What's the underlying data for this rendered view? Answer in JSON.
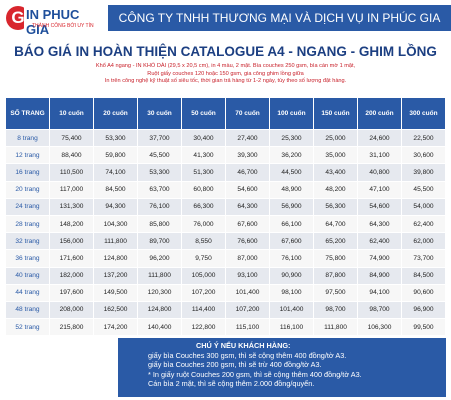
{
  "header": {
    "logo": "IN PHUC GIA",
    "slogan": "THÀNH CÔNG BỞI UY TÍN",
    "company": "CÔNG TY TNHH THƯƠNG MẠI VÀ DỊCH VỤ IN PHÚC GIA"
  },
  "title": "BÁO GIÁ IN HOÀN THIỆN CATALOGUE A4 - NGANG - GHIM LỒNG",
  "description": [
    "Khổ A4 ngang - IN KHỔ DÀI (29,5 x 20,5 cm), in 4 màu, 2 mặt. Bìa couches 250 gsm, bìa cán mờ 1 mặt,",
    "Ruột giấy couches 120 hoặc 150 gsm, gia công ghim lồng giữa",
    "In trên công nghệ kỹ thuật số siêu tốc, thời gian trả hàng từ 1-2 ngày, tùy theo số lượng đặt hàng."
  ],
  "table": {
    "columns": [
      "SỐ TRANG",
      "10 cuốn",
      "20 cuốn",
      "30 cuốn",
      "50 cuốn",
      "70 cuốn",
      "100 cuốn",
      "150 cuốn",
      "200 cuốn",
      "300 cuốn"
    ],
    "rows": [
      [
        "8 trang",
        "75,400",
        "53,300",
        "37,700",
        "30,400",
        "27,400",
        "25,300",
        "25,000",
        "24,600",
        "22,500"
      ],
      [
        "12 trang",
        "88,400",
        "59,800",
        "45,500",
        "41,300",
        "39,300",
        "36,200",
        "35,000",
        "31,100",
        "30,600"
      ],
      [
        "16 trang",
        "110,500",
        "74,100",
        "53,300",
        "51,300",
        "46,700",
        "44,500",
        "43,400",
        "40,800",
        "39,800"
      ],
      [
        "20 trang",
        "117,000",
        "84,500",
        "63,700",
        "60,800",
        "54,600",
        "48,900",
        "48,200",
        "47,100",
        "45,500"
      ],
      [
        "24 trang",
        "131,300",
        "94,300",
        "76,100",
        "66,300",
        "64,300",
        "56,900",
        "56,300",
        "54,600",
        "54,000"
      ],
      [
        "28 trang",
        "148,200",
        "104,300",
        "85,800",
        "76,000",
        "67,600",
        "66,100",
        "64,700",
        "64,300",
        "62,400"
      ],
      [
        "32 trang",
        "156,000",
        "111,800",
        "89,700",
        "8,550",
        "76,600",
        "67,600",
        "65,200",
        "62,400",
        "62,000"
      ],
      [
        "36 trang",
        "171,600",
        "124,800",
        "96,200",
        "9,750",
        "87,000",
        "76,100",
        "75,800",
        "74,900",
        "73,700"
      ],
      [
        "40 trang",
        "182,000",
        "137,200",
        "111,800",
        "105,000",
        "93,100",
        "90,900",
        "87,800",
        "84,900",
        "84,500"
      ],
      [
        "44 trang",
        "197,600",
        "149,500",
        "120,300",
        "107,200",
        "101,400",
        "98,100",
        "97,500",
        "94,100",
        "90,600"
      ],
      [
        "48 trang",
        "208,000",
        "162,500",
        "124,800",
        "114,400",
        "107,200",
        "101,400",
        "98,700",
        "98,700",
        "96,900"
      ],
      [
        "52 trang",
        "215,800",
        "174,200",
        "140,400",
        "122,800",
        "115,100",
        "116,100",
        "111,800",
        "106,300",
        "99,500"
      ]
    ]
  },
  "notes": {
    "title": "CHÚ Ý NẾU KHÁCH HÀNG:",
    "lines": [
      "giấy bìa Couches 300 gsm, thì sẽ cộng thêm 400 đồng/tờ A3.",
      "giấy bìa Couches 200 gsm, thì sẽ trừ 400 đồng/tờ A3.",
      "* In giấy ruột Couches 200 gsm, thì sẽ cộng thêm 400 đồng/tờ A3.",
      "Cán bìa 2 mặt, thì sẽ cộng thêm 2.000 đồng/quyển."
    ]
  }
}
